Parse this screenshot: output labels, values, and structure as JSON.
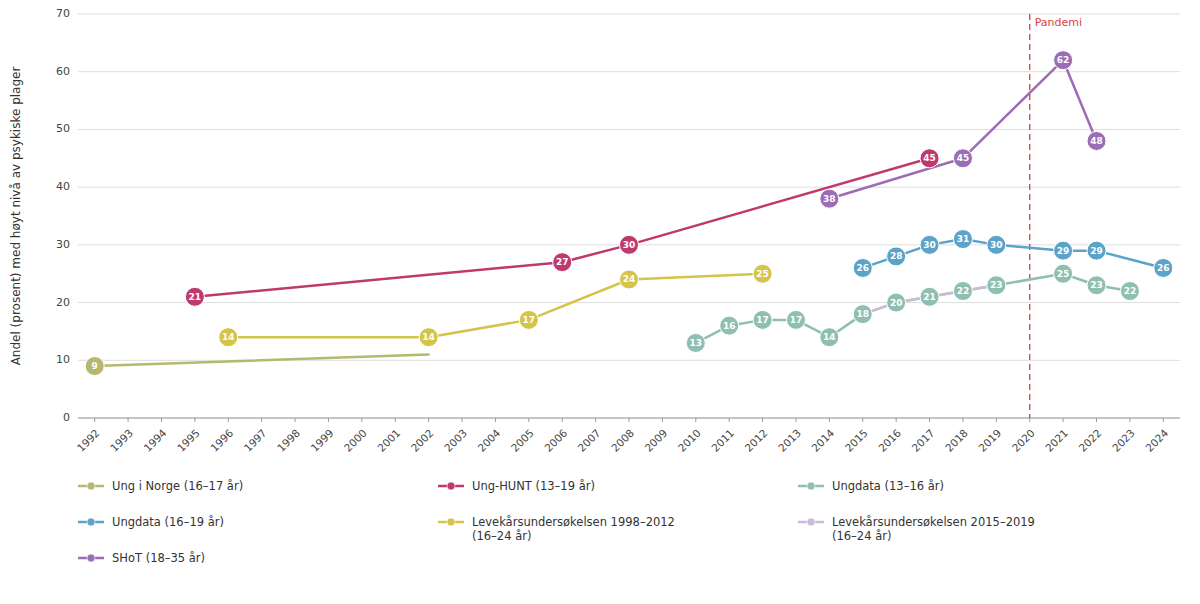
{
  "chart_data": {
    "type": "line",
    "y_label": "Andel (prosent) med høyt nivå av psykiske plager",
    "xlim": [
      1991.5,
      2024.5
    ],
    "xticks": [
      1992,
      1993,
      1994,
      1995,
      1996,
      1997,
      1998,
      1999,
      2000,
      2001,
      2002,
      2003,
      2004,
      2005,
      2006,
      2007,
      2008,
      2009,
      2010,
      2011,
      2012,
      2013,
      2014,
      2015,
      2016,
      2017,
      2018,
      2019,
      2020,
      2021,
      2022,
      2023,
      2024
    ],
    "ylim": [
      0,
      70
    ],
    "yticks": [
      0,
      10,
      20,
      30,
      40,
      50,
      60,
      70
    ],
    "grid": "y",
    "legend": "bottom",
    "data_labels": true,
    "annotations": [
      {
        "x": 2020,
        "text": "Pandemi",
        "color": "#d94040",
        "line_style": "dashed"
      }
    ],
    "series": [
      {
        "name": "Ung i Norge (16–17 år)",
        "color": "#b5b86e",
        "marker": "first",
        "x": [
          1992,
          2002
        ],
        "values": [
          9,
          11
        ]
      },
      {
        "name": "Ung-HUNT (13–19 år)",
        "color": "#c0396e",
        "marker": "circle",
        "x": [
          1995,
          2006,
          2008,
          2017
        ],
        "values": [
          21,
          27,
          30,
          45
        ]
      },
      {
        "name": "Ungdata (13–16 år)",
        "color": "#8fbfb0",
        "marker": "circle",
        "x": [
          2010,
          2011,
          2012,
          2013,
          2014,
          2015,
          2016,
          2017,
          2018,
          2019,
          2021,
          2022,
          2023
        ],
        "values": [
          13,
          16,
          17,
          17,
          14,
          18,
          20,
          21,
          22,
          23,
          25,
          23,
          22
        ]
      },
      {
        "name": "Ungdata (16–19 år)",
        "color": "#5ba3c9",
        "marker": "circle",
        "x": [
          2015,
          2016,
          2017,
          2018,
          2019,
          2021,
          2022,
          2024
        ],
        "values": [
          26,
          28,
          30,
          31,
          30,
          29,
          29,
          26
        ]
      },
      {
        "name": "Levekårsundersøkelsen 1998–2012\n(16–24 år)",
        "color": "#d4c44a",
        "marker": "circle",
        "x": [
          1996,
          2002,
          2005,
          2008,
          2012
        ],
        "values": [
          14,
          14,
          17,
          24,
          25
        ]
      },
      {
        "name": "Levekårsundersøkelsen 2015–2019\n(16–24 år)",
        "color": "#c8bcd8",
        "marker": "none",
        "x": [
          2015,
          2016,
          2017,
          2018,
          2019
        ],
        "values": [
          18,
          20,
          21,
          22,
          23
        ]
      },
      {
        "name": "SHoT (18–35 år)",
        "color": "#9b6db5",
        "marker": "circle",
        "x": [
          2014,
          2018,
          2021,
          2022
        ],
        "values": [
          38,
          45,
          62,
          48
        ]
      }
    ]
  }
}
